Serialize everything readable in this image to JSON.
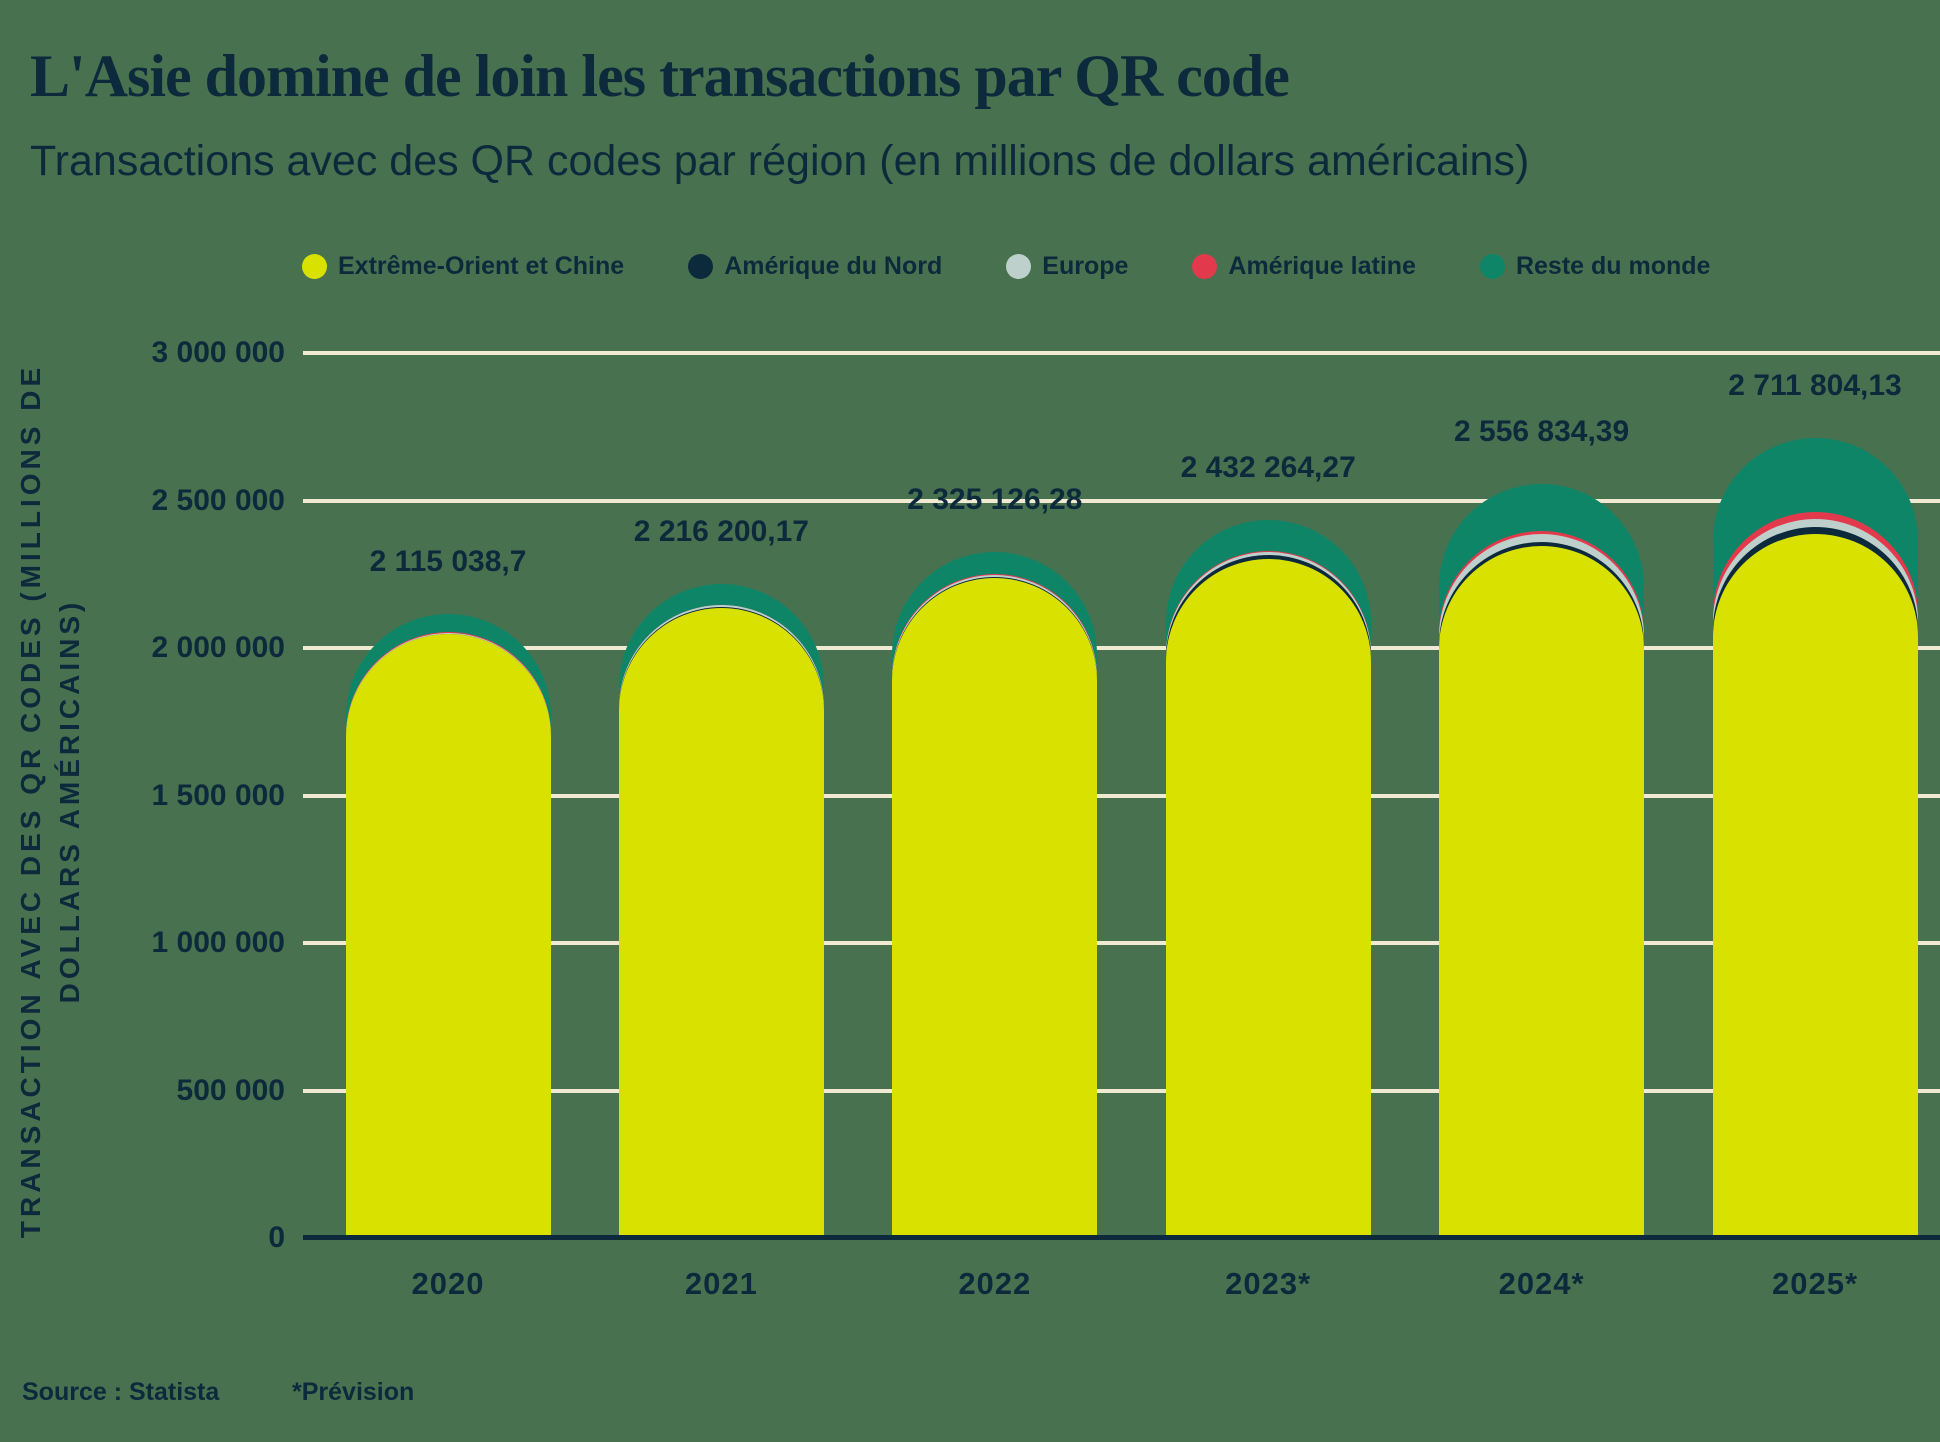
{
  "title": "L'Asie domine de loin les transactions par QR code",
  "subtitle": "Transactions avec des QR codes par région (en millions de dollars américains)",
  "source_label": "Source : Statista",
  "forecast_note": "*Prévision",
  "colors": {
    "background": "#48724f",
    "text": "#0d2a3c",
    "gridline": "#f0ead2",
    "axis_line": "#0d2a3c",
    "far_east_china": "#d8e100",
    "north_america": "#0d2a3c",
    "europe": "#bdd0cb",
    "latin_america": "#e23a4c",
    "rest_of_world": "#0f8568"
  },
  "legend": [
    {
      "label": "Extrême-Orient et Chine",
      "color": "#d8e100"
    },
    {
      "label": "Amérique du Nord",
      "color": "#0d2a3c"
    },
    {
      "label": "Europe",
      "color": "#bdd0cb"
    },
    {
      "label": "Amérique latine",
      "color": "#e23a4c"
    },
    {
      "label": "Reste du monde",
      "color": "#0f8568"
    }
  ],
  "chart_data": {
    "type": "bar",
    "subtype": "stacked-rounded-top",
    "title": "Transactions avec des QR codes par région (en millions de dollars américains)",
    "xlabel": "",
    "ylabel_lines": [
      "TRANSACTION AVEC DES QR CODES (MILLIONS DE",
      "DOLLARS AMÉRICAINS)"
    ],
    "categories": [
      "2020",
      "2021",
      "2022",
      "2023*",
      "2024*",
      "2025*"
    ],
    "series": [
      {
        "name": "Extrême-Orient et Chine",
        "color": "#d8e100",
        "values": [
          2046000,
          2136000,
          2236000,
          2300000,
          2346000,
          2388000
        ]
      },
      {
        "name": "Amérique du Nord",
        "color": "#0d2a3c",
        "values": [
          3000,
          4200,
          6000,
          15000,
          14000,
          21000
        ]
      },
      {
        "name": "Europe",
        "color": "#bdd0cb",
        "values": [
          3000,
          4000,
          5000,
          10000,
          27000,
          28000
        ]
      },
      {
        "name": "Amérique latine",
        "color": "#e23a4c",
        "values": [
          1000,
          2000,
          3000,
          5000,
          8000,
          25000
        ]
      },
      {
        "name": "Reste du monde",
        "color": "#0f8568",
        "values": [
          62038.7,
          70000.17,
          75126.28,
          102264.27,
          161834.39,
          249804.13
        ]
      }
    ],
    "totals": [
      2115038.7,
      2216200.17,
      2325126.28,
      2432264.27,
      2556834.39,
      2711804.13
    ],
    "total_labels": [
      "2 115 038,7",
      "2 216 200,17",
      "2 325 126,28",
      "2 432 264,27",
      "2 556 834,39",
      "2 711 804,13"
    ],
    "yticks": [
      {
        "value": 3000000,
        "label": "3 000 000"
      },
      {
        "value": 2500000,
        "label": "2 500 000"
      },
      {
        "value": 2000000,
        "label": "2 000 000"
      },
      {
        "value": 1500000,
        "label": "1 500 000"
      },
      {
        "value": 1000000,
        "label": "1 000 000"
      },
      {
        "value": 500000,
        "label": "500 000"
      },
      {
        "value": 0,
        "label": "0"
      }
    ],
    "ylim": [
      0,
      3000000
    ],
    "grid": true,
    "legend_position": "top"
  }
}
